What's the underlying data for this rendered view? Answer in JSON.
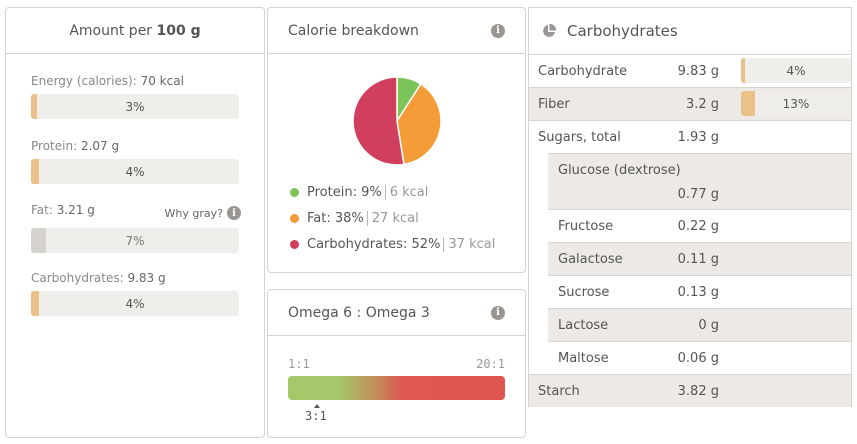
{
  "amount": {
    "title_prefix": "Amount per",
    "title_bold": "100 g",
    "items": [
      {
        "label": "Energy (calories):",
        "value": "70 kcal",
        "percent": "3%",
        "fill": 3,
        "color": "#ecc089"
      },
      {
        "label": "Protein:",
        "value": "2.07 g",
        "percent": "4%",
        "fill": 4,
        "color": "#ecc089"
      },
      {
        "label": "Fat:",
        "value": "3.21 g",
        "percent": "7%",
        "fill": 7,
        "color": "#d6d3cf"
      },
      {
        "label": "Carbohydrates:",
        "value": "9.83 g",
        "percent": "4%",
        "fill": 4,
        "color": "#ecc089"
      }
    ],
    "why_gray": "Why gray?"
  },
  "calorie": {
    "title": "Calorie breakdown",
    "legend": [
      {
        "name": "Protein:",
        "pct": "9%",
        "kcal": "6 kcal",
        "color": "#7cc35a",
        "value": 9
      },
      {
        "name": "Fat:",
        "pct": "38%",
        "kcal": "27 kcal",
        "color": "#f39c38",
        "value": 38
      },
      {
        "name": "Carbohydrates:",
        "pct": "52%",
        "kcal": "37 kcal",
        "color": "#d03f5e",
        "value": 52
      }
    ]
  },
  "omega": {
    "title": "Omega 6 : Omega 3",
    "min": "1:1",
    "max": "20:1",
    "marker": "3:1"
  },
  "carbs": {
    "title": "Carbohydrates",
    "rows": [
      {
        "name": "Carbohydrate",
        "value": "9.83 g",
        "percent": "4%",
        "fill": 4
      },
      {
        "name": "Fiber",
        "value": "3.2 g",
        "percent": "13%",
        "fill": 13
      },
      {
        "name": "Sugars, total",
        "value": "1.93 g"
      },
      {
        "name": "Glucose (dextrose)",
        "value": "0.77 g"
      },
      {
        "name": "Fructose",
        "value": "0.22 g"
      },
      {
        "name": "Galactose",
        "value": "0.11 g"
      },
      {
        "name": "Sucrose",
        "value": "0.13 g"
      },
      {
        "name": "Lactose",
        "value": "0 g"
      },
      {
        "name": "Maltose",
        "value": "0.06 g"
      },
      {
        "name": "Starch",
        "value": "3.82 g"
      }
    ]
  }
}
